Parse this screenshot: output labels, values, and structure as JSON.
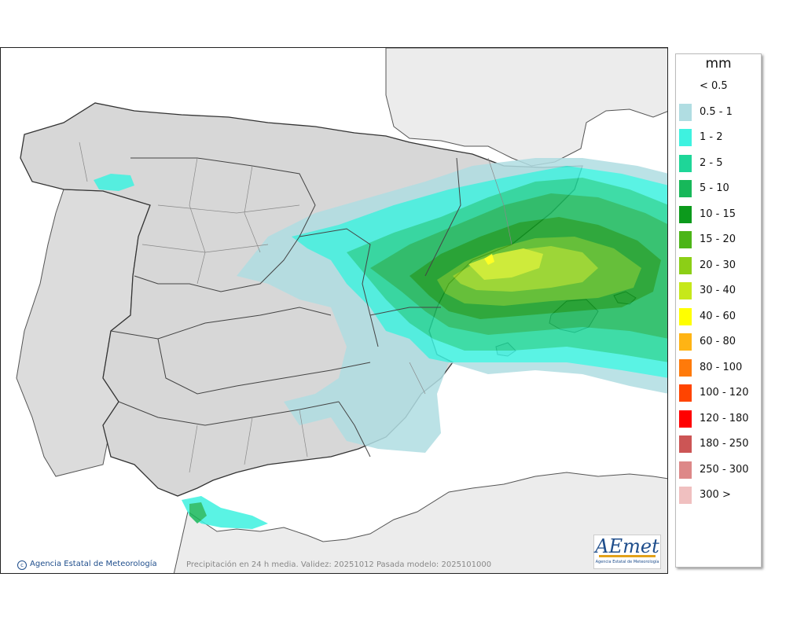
{
  "legend": {
    "unit": "mm",
    "entries": [
      {
        "label": "< 0.5",
        "color": ""
      },
      {
        "label": "0.5 - 1",
        "color": "#b0dde2"
      },
      {
        "label": "1 - 2",
        "color": "#3ef2e0"
      },
      {
        "label": "2 - 5",
        "color": "#1ed698"
      },
      {
        "label": "5 - 10",
        "color": "#17b85a"
      },
      {
        "label": "10 - 15",
        "color": "#0c9a1c"
      },
      {
        "label": "15 - 20",
        "color": "#4cb518"
      },
      {
        "label": "20 - 30",
        "color": "#8ccf16"
      },
      {
        "label": "30 - 40",
        "color": "#c6e81a"
      },
      {
        "label": "40 - 60",
        "color": "#ffff00"
      },
      {
        "label": "60 - 80",
        "color": "#ffb414"
      },
      {
        "label": "80 - 100",
        "color": "#ff7a0a"
      },
      {
        "label": "100 - 120",
        "color": "#ff4400"
      },
      {
        "label": "120 - 180",
        "color": "#ff0000"
      },
      {
        "label": "180 - 250",
        "color": "#cc5555"
      },
      {
        "label": "250 - 300",
        "color": "#dd8888"
      },
      {
        "label": "300 >",
        "color": "#f0c0c0"
      }
    ]
  },
  "credit": "Agencia Estatal de Meteorología",
  "credit_icon": "copyright-icon",
  "footer": "Precipitación en 24 h media. Validez: 20251012 Pasada modelo: 2025101000",
  "logo": {
    "text": "AEmet",
    "subtitle": "Agencia Estatal de Meteorología"
  }
}
